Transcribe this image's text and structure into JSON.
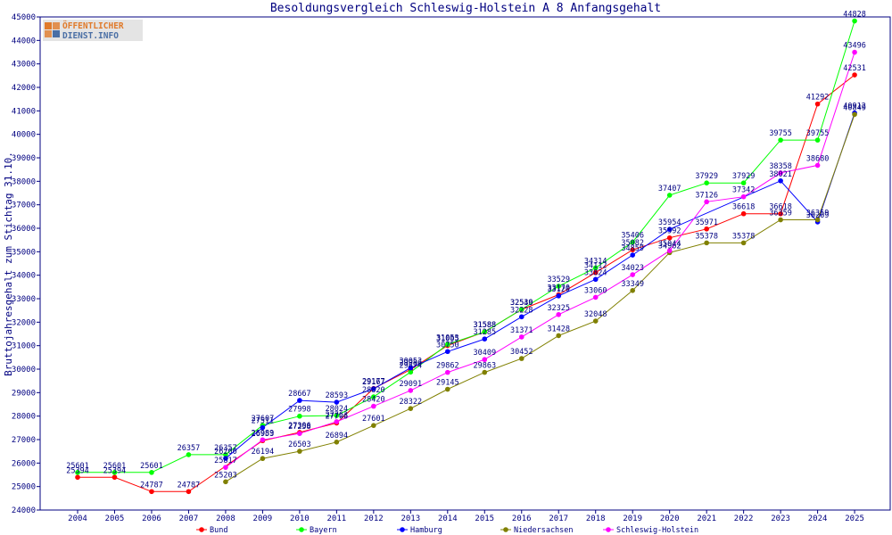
{
  "logo": {
    "line1": "ÖFFENTLICHER",
    "line2": "DIENST.INFO"
  },
  "chart_data": {
    "type": "line",
    "title": "Besoldungsvergleich Schleswig-Holstein A 8 Anfangsgehalt",
    "xlabel": "",
    "ylabel": "Bruttojahresgehalt zum Stichtag 31.10.",
    "ylim": [
      24000,
      45000
    ],
    "yticks": [
      24000,
      25000,
      26000,
      27000,
      28000,
      29000,
      30000,
      31000,
      32000,
      33000,
      34000,
      35000,
      36000,
      37000,
      38000,
      39000,
      40000,
      41000,
      42000,
      43000,
      44000,
      45000
    ],
    "categories": [
      "2004",
      "2005",
      "2006",
      "2007",
      "2008",
      "2009",
      "2010",
      "2011",
      "2012",
      "2013",
      "2014",
      "2015",
      "2016",
      "2017",
      "2018",
      "2019",
      "2020",
      "2021",
      "2022",
      "2023",
      "2024",
      "2025"
    ],
    "grid": false,
    "legend_placement": "bottom",
    "series": [
      {
        "name": "Bund",
        "color": "#ff0000",
        "values": [
          25394,
          25394,
          24787,
          24787,
          null,
          26953,
          27306,
          27706,
          29177,
          29986,
          31005,
          31588,
          32539,
          33170,
          34112,
          35082,
          35592,
          35971,
          36618,
          36618,
          41292,
          42531
        ]
      },
      {
        "name": "Bayern",
        "color": "#00ff00",
        "values": [
          25601,
          25601,
          25601,
          26357,
          26357,
          27607,
          27998,
          28024,
          28820,
          29874,
          31053,
          31588,
          32546,
          33529,
          34314,
          35406,
          37407,
          37929,
          37929,
          39755,
          39755,
          44828
        ]
      },
      {
        "name": "Hamburg",
        "color": "#0000ff",
        "values": [
          null,
          null,
          null,
          null,
          26200,
          27511,
          28667,
          28593,
          29167,
          30053,
          30750,
          31285,
          32228,
          33120,
          33824,
          34859,
          35954,
          null,
          null,
          38021,
          36269,
          40912
        ]
      },
      {
        "name": "Niedersachsen",
        "color": "#808000",
        "values": [
          null,
          null,
          null,
          null,
          25203,
          26194,
          26503,
          26894,
          27601,
          28322,
          29145,
          29863,
          30452,
          31428,
          32048,
          33349,
          34962,
          35378,
          35378,
          36359,
          36359,
          40849
        ]
      },
      {
        "name": "Schleswig-Holstein",
        "color": "#ff00ff",
        "values": [
          null,
          null,
          null,
          null,
          25817,
          26989,
          27258,
          27763,
          28420,
          29091,
          29862,
          30409,
          31371,
          32325,
          33060,
          34023,
          35044,
          37126,
          37342,
          38358,
          38680,
          43496
        ]
      }
    ]
  }
}
